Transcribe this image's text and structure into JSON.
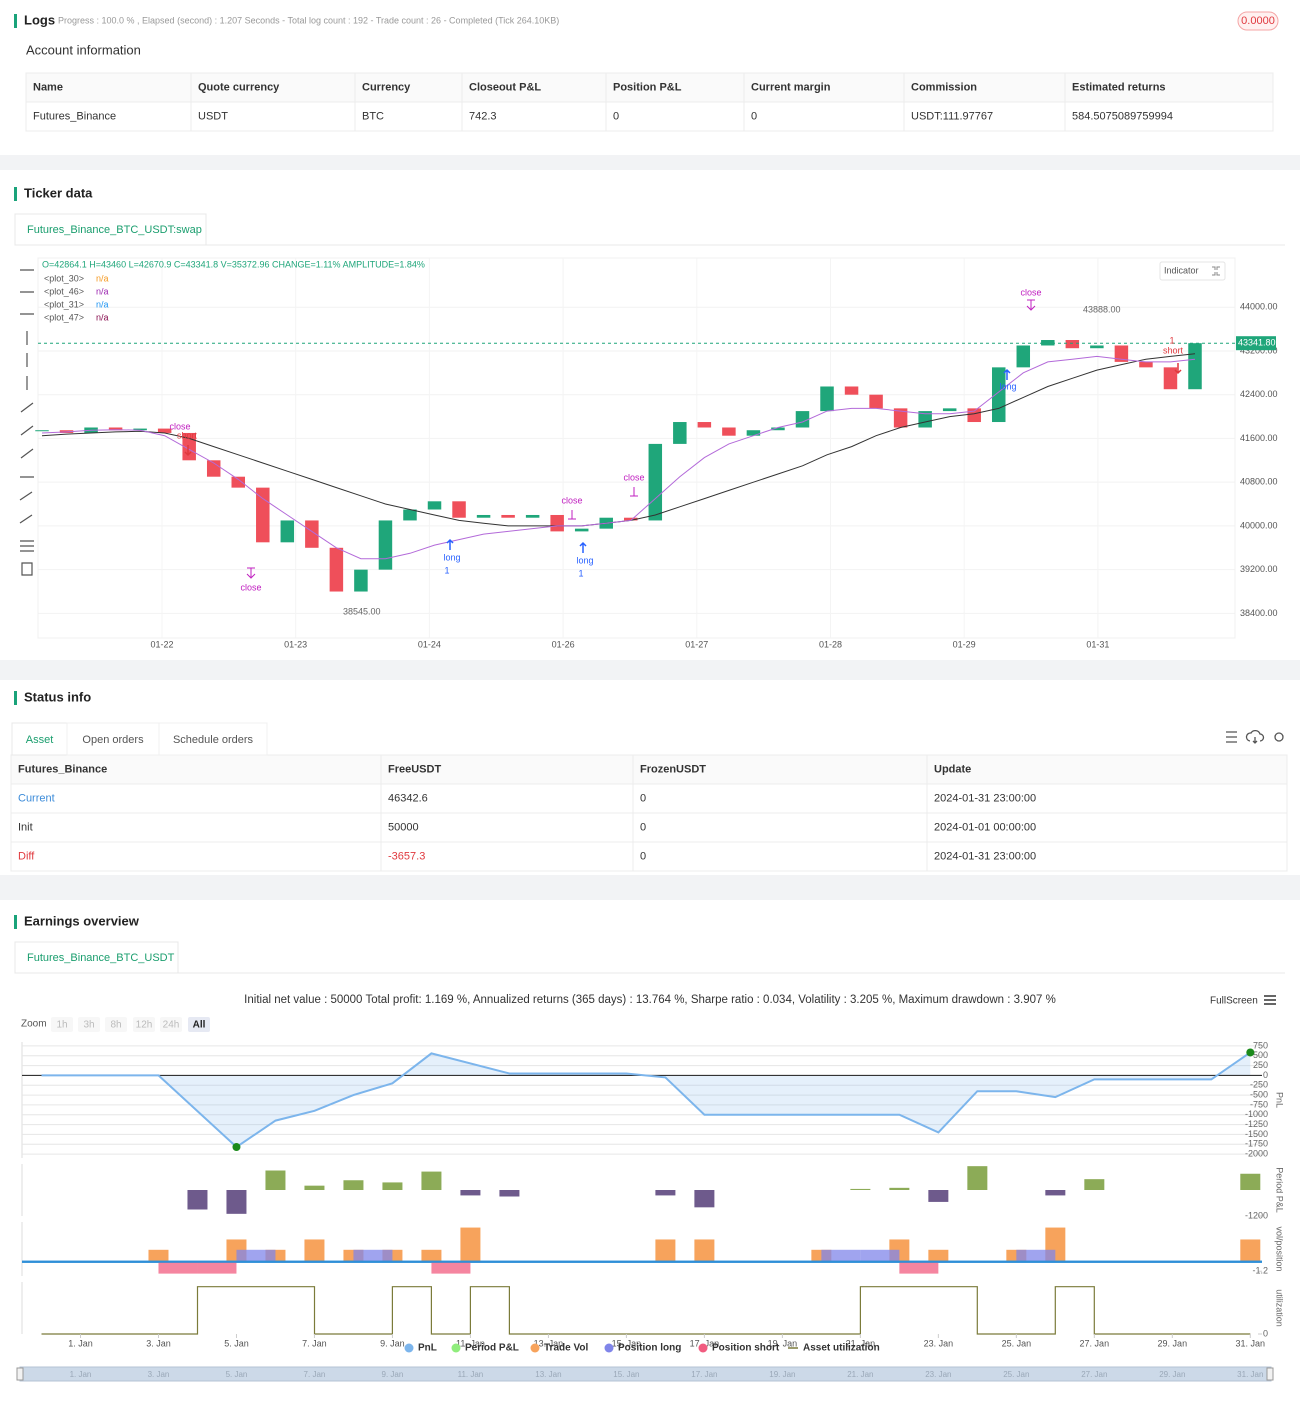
{
  "logs": {
    "title": "Logs",
    "progress": "Progress : 100.0 % , Elapsed (second) : 1.207  Seconds - Total log count : 192 - Trade count : 26 - Completed (Tick 264.10KB)",
    "badge": "0.0000",
    "account_title": "Account information",
    "table": {
      "headers": [
        "Name",
        "Quote currency",
        "Currency",
        "Closeout P&L",
        "Position P&L",
        "Current margin",
        "Commission",
        "Estimated returns"
      ],
      "rows": [
        [
          "Futures_Binance",
          "USDT",
          "BTC",
          "742.3",
          "0",
          "0",
          "USDT:111.97767",
          "584.5075089759994"
        ]
      ]
    }
  },
  "ticker": {
    "title": "Ticker data",
    "tab": "Futures_Binance_BTC_USDT:swap",
    "indicator": "Indicator"
  },
  "status": {
    "title": "Status info",
    "tabs": [
      "Asset",
      "Open orders",
      "Schedule orders"
    ],
    "table": {
      "headers": [
        "Futures_Binance",
        "FreeUSDT",
        "FrozenUSDT",
        "Update"
      ],
      "rows": [
        [
          "Current",
          "46342.6",
          "0",
          "2024-01-31 23:00:00"
        ],
        [
          "Init",
          "50000",
          "0",
          "2024-01-01 00:00:00"
        ],
        [
          "Diff",
          "-3657.3",
          "0",
          "2024-01-31 23:00:00"
        ]
      ]
    }
  },
  "earnings": {
    "title": "Earnings overview",
    "tab": "Futures_Binance_BTC_USDT",
    "summary": "Initial net value : 50000 Total profit: 1.169 %, Annualized returns (365 days) : 13.764 %, Sharpe ratio : 0.034, Volatility : 3.205 %, Maximum drawdown : 3.907 %",
    "fullscreen": "FullScreen",
    "zoom_label": "Zoom",
    "zoom_buttons": [
      "1h",
      "3h",
      "8h",
      "12h",
      "24h",
      "All"
    ]
  },
  "chart_data": [
    {
      "type": "candlestick",
      "ohlc_line": "O=42864.1 H=43460 L=42670.9 C=43341.8 V=35372.96 CHANGE=1.11% AMPLITUDE=1.84%",
      "legend": [
        {
          "name": "<plot_30>",
          "value": "n/a",
          "color": "#f59a23"
        },
        {
          "name": "<plot_46>",
          "value": "n/a",
          "color": "#9c27b0"
        },
        {
          "name": "<plot_31>",
          "value": "n/a",
          "color": "#2196f3"
        },
        {
          "name": "<plot_47>",
          "value": "n/a",
          "color": "#880e4f"
        }
      ],
      "up_color": "#1fa67a",
      "down_color": "#ef4f5a",
      "values": [
        41750,
        41700,
        41800,
        41750,
        41780,
        41700,
        41200,
        40900,
        40700,
        39700,
        40100,
        39600,
        38800,
        39200,
        40100,
        40300,
        40450,
        40150,
        40200,
        40150,
        40200,
        39900,
        39950,
        40150,
        40100,
        41500,
        41900,
        41800,
        41650,
        41750,
        41800,
        42100,
        42550,
        42400,
        42150,
        41800,
        42100,
        42150,
        41900,
        42900,
        43300,
        43400,
        43250,
        43300,
        43000,
        42900,
        42500,
        43341.8
      ],
      "series": [
        {
          "color": "#333333",
          "values": [
            41650,
            41680,
            41700,
            41720,
            41730,
            41700,
            41600,
            41450,
            41300,
            41150,
            41000,
            40850,
            40700,
            40550,
            40400,
            40300,
            40200,
            40100,
            40050,
            40000,
            40000,
            40000,
            40000,
            40050,
            40100,
            40200,
            40350,
            40500,
            40650,
            40800,
            40950,
            41100,
            41300,
            41450,
            41650,
            41800,
            41900,
            42000,
            42050,
            42150,
            42350,
            42550,
            42700,
            42850,
            42950,
            43050,
            43100,
            43150
          ]
        },
        {
          "color": "#b36ad9",
          "values": [
            41700,
            41720,
            41750,
            41760,
            41750,
            41650,
            41400,
            41150,
            40850,
            40500,
            40200,
            39900,
            39600,
            39400,
            39400,
            39500,
            39650,
            39750,
            39850,
            39900,
            39950,
            40000,
            40000,
            40050,
            40100,
            40500,
            40900,
            41250,
            41500,
            41650,
            41800,
            41900,
            42100,
            42150,
            42150,
            42100,
            42050,
            42050,
            42100,
            42450,
            42800,
            43000,
            43050,
            43100,
            43050,
            43000,
            43000,
            43050
          ]
        }
      ],
      "ylim": [
        37950,
        44900
      ],
      "yticks": [
        {
          "value": 38400,
          "label": "38400.00"
        },
        {
          "value": 39200,
          "label": "39200.00"
        },
        {
          "value": 40000,
          "label": "40000.00"
        },
        {
          "value": 40800,
          "label": "40800.00"
        },
        {
          "value": 41600,
          "label": "41600.00"
        },
        {
          "value": 42400,
          "label": "42400.00"
        },
        {
          "value": 43200,
          "label": "43200.00"
        },
        {
          "value": 44000,
          "label": "44000.00"
        }
      ],
      "x_labels": [
        "01-22",
        "01-23",
        "01-24",
        "01-26",
        "01-27",
        "01-28",
        "01-29",
        "01-31"
      ],
      "last_price": {
        "value": 43341.8,
        "label": "43341.80"
      },
      "annotations": [
        "close",
        "long",
        "short",
        "1",
        "43888.00",
        "38545.00"
      ]
    },
    {
      "type": "area",
      "ylabel": "PnL",
      "x": [
        0,
        3,
        5,
        6,
        7,
        8,
        9,
        10,
        12,
        15,
        16,
        17,
        22,
        23,
        24,
        25,
        26,
        27,
        30,
        31
      ],
      "series": [
        {
          "name": "PnL",
          "color": "#7cb5ec",
          "values": [
            0,
            0,
            -1820,
            -1150,
            -900,
            -500,
            -200,
            560,
            50,
            50,
            -50,
            -1000,
            -1000,
            -1450,
            -400,
            -400,
            -550,
            -100,
            -100,
            584.5
          ]
        }
      ],
      "xlim": [
        -0.5,
        31.3
      ],
      "ylim": [
        -2100,
        850
      ],
      "yticks": [
        750,
        500,
        250,
        0,
        -250,
        -500,
        -750,
        -1000,
        -1250,
        -1500,
        -1750,
        -2000
      ]
    },
    {
      "type": "bar",
      "ylabel": "Period P&L",
      "x": [
        4,
        5,
        6,
        7,
        8,
        9,
        10,
        11,
        12,
        16,
        17,
        21,
        22,
        23,
        24,
        26,
        27,
        31
      ],
      "series": [
        {
          "name": "Period P&L",
          "color": "#90ed7d",
          "positive_color": "#8cab57",
          "negative_color": "#6e5a8c",
          "values": [
            -900,
            -1100,
            900,
            200,
            450,
            350,
            850,
            -250,
            -300,
            -250,
            -800,
            50,
            100,
            -550,
            1100,
            -250,
            500,
            750
          ]
        }
      ],
      "xlim": [
        -0.5,
        31.3
      ],
      "ylim": [
        -1200,
        1200
      ],
      "yticks": [
        -1200
      ]
    },
    {
      "type": "bar",
      "ylabel": "vol/position",
      "x": [
        3,
        4,
        5,
        6,
        7,
        8,
        9,
        10,
        11,
        16,
        17,
        20,
        21,
        22,
        23,
        25,
        26,
        31
      ],
      "series": [
        {
          "name": "Trade Vol",
          "color": "#f7a35c",
          "values": [
            1.5,
            null,
            2.8,
            1.5,
            2.8,
            1.5,
            1.5,
            1.5,
            4.3,
            2.8,
            2.8,
            1.5,
            null,
            2.8,
            1.5,
            1.5,
            4.3,
            2.8
          ]
        },
        {
          "name": "Position long",
          "color": "#8085e9",
          "values": [
            null,
            null,
            1.5,
            null,
            null,
            1.5,
            null,
            null,
            null,
            null,
            null,
            1.5,
            1.5,
            null,
            null,
            1.5,
            null,
            null
          ]
        },
        {
          "name": "Position short",
          "color": "#f15c80",
          "values": [
            -1.5,
            -1.5,
            null,
            null,
            null,
            null,
            null,
            -1.5,
            null,
            null,
            null,
            null,
            null,
            -1.5,
            null,
            null,
            null,
            null
          ]
        }
      ],
      "xlim": [
        -0.5,
        31.3
      ],
      "ylim": [
        -1.8,
        5
      ],
      "yticks": [
        -1.2
      ]
    },
    {
      "type": "step",
      "ylabel": "utilization",
      "x": [
        0,
        4,
        7,
        9,
        10,
        11,
        12,
        21,
        24,
        26,
        27,
        31
      ],
      "series": [
        {
          "name": "Asset utilization",
          "color": "#7b7b3a",
          "values": [
            0,
            1,
            0,
            1,
            0,
            1,
            0,
            1,
            0,
            1,
            0,
            0
          ]
        }
      ],
      "xlim": [
        -0.5,
        31.3
      ],
      "ylim": [
        0,
        1.1
      ],
      "yticks": [
        0
      ],
      "xticks": [
        {
          "value": 1,
          "label": "1. Jan"
        },
        {
          "value": 3,
          "label": "3. Jan"
        },
        {
          "value": 5,
          "label": "5. Jan"
        },
        {
          "value": 7,
          "label": "7. Jan"
        },
        {
          "value": 9,
          "label": "9. Jan"
        },
        {
          "value": 11,
          "label": "11. Jan"
        },
        {
          "value": 13,
          "label": "13. Jan"
        },
        {
          "value": 15,
          "label": "15. Jan"
        },
        {
          "value": 17,
          "label": "17. Jan"
        },
        {
          "value": 19,
          "label": "19. Jan"
        },
        {
          "value": 21,
          "label": "21. Jan"
        },
        {
          "value": 23,
          "label": "23. Jan"
        },
        {
          "value": 25,
          "label": "25. Jan"
        },
        {
          "value": 27,
          "label": "27. Jan"
        },
        {
          "value": 29,
          "label": "29. Jan"
        },
        {
          "value": 31,
          "label": "31. Jan"
        }
      ]
    }
  ]
}
